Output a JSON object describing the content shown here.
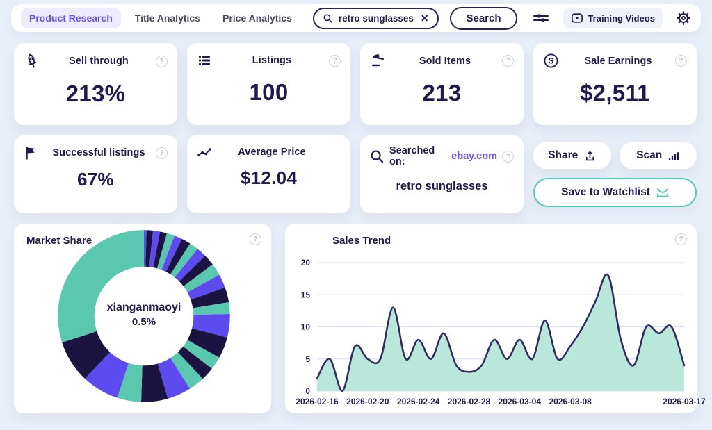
{
  "topbar": {
    "tabs": [
      {
        "label": "Product Research",
        "active": true
      },
      {
        "label": "Title Analytics",
        "active": false
      },
      {
        "label": "Price Analytics",
        "active": false
      }
    ],
    "search_value": "retro sunglasses",
    "clear_glyph": "✕",
    "search_button_label": "Search",
    "training_videos_label": "Training Videos",
    "help_glyph": "?"
  },
  "stats_row1": [
    {
      "icon": "rocket-icon",
      "title": "Sell through",
      "value": "213%"
    },
    {
      "icon": "list-icon",
      "title": "Listings",
      "value": "100"
    },
    {
      "icon": "gavel-icon",
      "title": "Sold Items",
      "value": "213"
    },
    {
      "icon": "dollar-circle-icon",
      "title": "Sale Earnings",
      "value": "$2,511"
    }
  ],
  "stats_row2": [
    {
      "icon": "flag-icon",
      "title": "Successful listings",
      "value": "67%"
    },
    {
      "icon": "trendline-icon",
      "title": "Average Price",
      "value": "$12.04"
    },
    {
      "icon": "magnifier-icon",
      "title": "Searched on:",
      "site": "ebay.com",
      "value": "retro sunglasses"
    }
  ],
  "actions": {
    "share_label": "Share",
    "scan_label": "Scan",
    "save_label": "Save to Watchlist"
  },
  "colors": {
    "page_bg": "#e9eff8",
    "navy": "#221a4e",
    "accent_purple": "#6b4cf2",
    "active_tab_bg": "#edecfd",
    "teal_border": "#4fccb0",
    "donut_teal": "#59c8ae",
    "donut_navy": "#1b1340",
    "donut_purple": "#5e4bf0",
    "area_fill": "#b9e8da",
    "area_line": "#332c5e",
    "grid_line": "#d9e5f6"
  },
  "chart_data": [
    {
      "type": "pie",
      "title": "Market Share",
      "donut": true,
      "center_label": "xianganmaoyi",
      "center_value": "0.5%",
      "segments": [
        {
          "percent": 0.5,
          "color": "#5e4bf0"
        },
        {
          "percent": 1.2,
          "color": "#1b1340"
        },
        {
          "percent": 1.3,
          "color": "#5e4bf0"
        },
        {
          "percent": 1.3,
          "color": "#1b1340"
        },
        {
          "percent": 1.5,
          "color": "#59c8ae"
        },
        {
          "percent": 1.5,
          "color": "#5e4bf0"
        },
        {
          "percent": 1.7,
          "color": "#1b1340"
        },
        {
          "percent": 1.7,
          "color": "#59c8ae"
        },
        {
          "percent": 1.9,
          "color": "#5e4bf0"
        },
        {
          "percent": 2.1,
          "color": "#1b1340"
        },
        {
          "percent": 2.3,
          "color": "#59c8ae"
        },
        {
          "percent": 2.6,
          "color": "#5e4bf0"
        },
        {
          "percent": 2.8,
          "color": "#1b1340"
        },
        {
          "percent": 2.2,
          "color": "#59c8ae"
        },
        {
          "percent": 4.4,
          "color": "#5e4bf0"
        },
        {
          "percent": 4.0,
          "color": "#1b1340"
        },
        {
          "percent": 2.5,
          "color": "#59c8ae"
        },
        {
          "percent": 2.5,
          "color": "#1b1340"
        },
        {
          "percent": 3.0,
          "color": "#59c8ae"
        },
        {
          "percent": 4.5,
          "color": "#5e4bf0"
        },
        {
          "percent": 5.0,
          "color": "#1b1340"
        },
        {
          "percent": 4.5,
          "color": "#59c8ae"
        },
        {
          "percent": 7.0,
          "color": "#5e4bf0"
        },
        {
          "percent": 8.0,
          "color": "#1b1340"
        },
        {
          "percent": 30.0,
          "color": "#59c8ae"
        }
      ]
    },
    {
      "type": "area",
      "title": "Sales Trend",
      "x": [
        "2026-02-16",
        "2026-02-17",
        "2026-02-18",
        "2026-02-19",
        "2026-02-20",
        "2026-02-21",
        "2026-02-22",
        "2026-02-23",
        "2026-02-24",
        "2026-02-25",
        "2026-02-26",
        "2026-02-27",
        "2026-02-28",
        "2026-03-01",
        "2026-03-02",
        "2026-03-03",
        "2026-03-04",
        "2026-03-05",
        "2026-03-06",
        "2026-03-07",
        "2026-03-08",
        "2026-03-09",
        "2026-03-10",
        "2026-03-11",
        "2026-03-12",
        "2026-03-13",
        "2026-03-14",
        "2026-03-15",
        "2026-03-16",
        "2026-03-17"
      ],
      "values": [
        2,
        5,
        0,
        7,
        5,
        5,
        13,
        5,
        8,
        5,
        9,
        4,
        3,
        4,
        8,
        5,
        8,
        5,
        11,
        5,
        7,
        10,
        14,
        18,
        8,
        4,
        10,
        9,
        10,
        4
      ],
      "x_tick_labels": [
        "2026-02-16",
        "2026-02-20",
        "2026-02-24",
        "2026-02-28",
        "2026-03-04",
        "2026-03-08",
        "2026-03-17"
      ],
      "x_tick_indices": [
        0,
        4,
        8,
        12,
        16,
        20,
        29
      ],
      "y_ticks": [
        0,
        5,
        10,
        15,
        20
      ],
      "ylim": [
        0,
        20
      ],
      "grid": true,
      "legend": "none",
      "line_color": "#332c5e",
      "fill_color": "#b9e8da"
    }
  ]
}
